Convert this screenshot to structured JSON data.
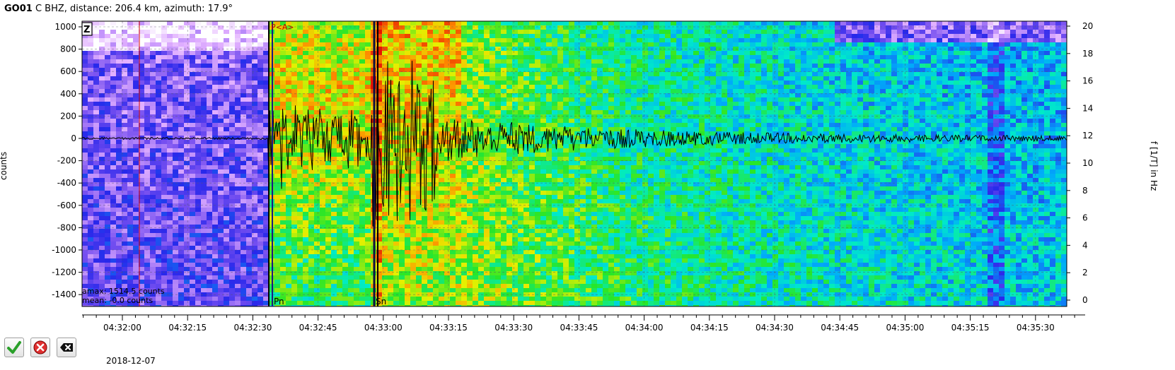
{
  "header": {
    "station": "GO01",
    "rest": "C  BHZ, distance: 206.4 km, azimuth: 17.9°"
  },
  "axes": {
    "left_label": "counts",
    "right_label": "f [1/T] in Hz",
    "left_ticks": [
      "1000",
      "800",
      "600",
      "400",
      "200",
      "0",
      "-200",
      "-400",
      "-600",
      "-800",
      "-1000",
      "-1200",
      "-1400"
    ],
    "right_ticks": [
      "20",
      "18",
      "16",
      "14",
      "12",
      "10",
      "8",
      "6",
      "4",
      "2",
      "0"
    ],
    "time_ticks": [
      "04:32:00",
      "04:32:15",
      "04:32:30",
      "04:32:45",
      "04:33:00",
      "04:33:15",
      "04:33:30",
      "04:33:45",
      "04:34:00",
      "04:34:15",
      "04:34:30",
      "04:34:45",
      "04:35:00",
      "04:35:15",
      "04:35:30"
    ],
    "date": "2018-12-07"
  },
  "component_box": "Z",
  "picks": {
    "p_label": "P<A>",
    "pn_label": "Pn",
    "sn_label": "Sn"
  },
  "stats": {
    "amax": "amax: 1514.5 counts",
    "mean": "mean: -0.0 counts"
  },
  "buttons": {
    "accept_icon": "check-icon",
    "reject_icon": "reject-icon",
    "cancel_icon": "delete-tag-icon"
  },
  "colors": {
    "waveform": "#000000",
    "p_pick": "#1a1a80",
    "reference_line": "#d00000"
  }
}
